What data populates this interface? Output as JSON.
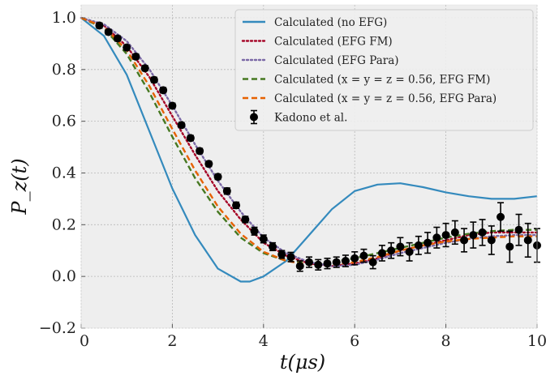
{
  "chart_data": {
    "type": "line",
    "xlabel": "t(μs)",
    "ylabel": "P_z(t)",
    "xlim": [
      0,
      10
    ],
    "ylim": [
      -0.2,
      1.05
    ],
    "x_ticks": [
      0,
      2,
      4,
      6,
      8,
      10
    ],
    "y_ticks": [
      -0.2,
      0.0,
      0.2,
      0.4,
      0.6,
      0.8,
      1.0
    ],
    "x_tick_labels": [
      "0",
      "2",
      "4",
      "6",
      "8",
      "10"
    ],
    "y_tick_labels": [
      "−0.2",
      "0.0",
      "0.2",
      "0.4",
      "0.6",
      "0.8",
      "1.0"
    ],
    "grid": true,
    "legend_position": "top-right",
    "background": "#eeeeee",
    "series": [
      {
        "name": "Calculated (no EFG)",
        "style": "solid",
        "color": "#348ABD",
        "x": [
          0,
          0.5,
          1.0,
          1.5,
          2.0,
          2.5,
          3.0,
          3.5,
          3.7,
          4.0,
          4.5,
          5.0,
          5.5,
          6.0,
          6.5,
          7.0,
          7.5,
          8.0,
          8.5,
          9.0,
          9.5,
          10.0
        ],
        "y": [
          1.0,
          0.93,
          0.78,
          0.56,
          0.34,
          0.16,
          0.03,
          -0.02,
          -0.02,
          0.0,
          0.06,
          0.16,
          0.26,
          0.33,
          0.355,
          0.36,
          0.345,
          0.325,
          0.31,
          0.3,
          0.3,
          0.31
        ]
      },
      {
        "name": "Calculated (EFG FM)",
        "style": "dotted",
        "color": "#A60628",
        "x": [
          0,
          0.5,
          1.0,
          1.5,
          2.0,
          2.5,
          3.0,
          3.5,
          4.0,
          4.5,
          5.0,
          5.5,
          6.0,
          6.5,
          7.0,
          7.5,
          8.0,
          8.5,
          9.0,
          9.5,
          10.0
        ],
        "y": [
          1.0,
          0.97,
          0.89,
          0.77,
          0.62,
          0.47,
          0.33,
          0.22,
          0.13,
          0.08,
          0.05,
          0.04,
          0.05,
          0.07,
          0.1,
          0.12,
          0.14,
          0.16,
          0.17,
          0.17,
          0.17
        ]
      },
      {
        "name": "Calculated (EFG Para)",
        "style": "dotted",
        "color": "#7A68A6",
        "x": [
          0,
          0.5,
          1.0,
          1.5,
          2.0,
          2.5,
          3.0,
          3.5,
          4.0,
          4.5,
          5.0,
          5.5,
          6.0,
          6.5,
          7.0,
          7.5,
          8.0,
          8.5,
          9.0,
          9.5,
          10.0
        ],
        "y": [
          1.0,
          0.975,
          0.91,
          0.8,
          0.66,
          0.51,
          0.37,
          0.25,
          0.15,
          0.09,
          0.055,
          0.04,
          0.045,
          0.065,
          0.09,
          0.11,
          0.13,
          0.145,
          0.155,
          0.16,
          0.16
        ]
      },
      {
        "name": "Calculated (x = y = z = 0.56, EFG FM)",
        "style": "dashed",
        "color": "#467821",
        "x": [
          0,
          0.5,
          1.0,
          1.5,
          2.0,
          2.5,
          3.0,
          3.5,
          4.0,
          4.5,
          5.0,
          5.5,
          6.0,
          6.5,
          7.0,
          7.5,
          8.0,
          8.5,
          9.0,
          9.5,
          10.0
        ],
        "y": [
          1.0,
          0.96,
          0.86,
          0.71,
          0.54,
          0.38,
          0.25,
          0.15,
          0.09,
          0.06,
          0.05,
          0.055,
          0.07,
          0.09,
          0.11,
          0.13,
          0.15,
          0.165,
          0.175,
          0.18,
          0.18
        ]
      },
      {
        "name": "Calculated (x = y = z = 0.56, EFG Para)",
        "style": "dashed",
        "color": "#E66100",
        "x": [
          0,
          0.5,
          1.0,
          1.5,
          2.0,
          2.5,
          3.0,
          3.5,
          4.0,
          4.5,
          5.0,
          5.5,
          6.0,
          6.5,
          7.0,
          7.5,
          8.0,
          8.5,
          9.0,
          9.5,
          10.0
        ],
        "y": [
          1.0,
          0.965,
          0.875,
          0.735,
          0.57,
          0.41,
          0.27,
          0.165,
          0.095,
          0.06,
          0.045,
          0.045,
          0.055,
          0.075,
          0.1,
          0.12,
          0.135,
          0.145,
          0.15,
          0.155,
          0.155
        ]
      }
    ],
    "errorbar_series": {
      "name": "Kadono et al.",
      "color": "#000000",
      "x": [
        0.4,
        0.6,
        0.8,
        1.0,
        1.2,
        1.4,
        1.6,
        1.8,
        2.0,
        2.2,
        2.4,
        2.6,
        2.8,
        3.0,
        3.2,
        3.4,
        3.6,
        3.8,
        4.0,
        4.2,
        4.4,
        4.6,
        4.8,
        5.0,
        5.2,
        5.4,
        5.6,
        5.8,
        6.0,
        6.2,
        6.4,
        6.6,
        6.8,
        7.0,
        7.2,
        7.4,
        7.6,
        7.8,
        8.0,
        8.2,
        8.4,
        8.6,
        8.8,
        9.0,
        9.2,
        9.4,
        9.6,
        9.8,
        10.0
      ],
      "y": [
        0.97,
        0.945,
        0.92,
        0.885,
        0.85,
        0.805,
        0.76,
        0.72,
        0.66,
        0.585,
        0.535,
        0.485,
        0.435,
        0.385,
        0.33,
        0.275,
        0.22,
        0.175,
        0.145,
        0.115,
        0.085,
        0.075,
        0.04,
        0.055,
        0.045,
        0.05,
        0.055,
        0.06,
        0.07,
        0.08,
        0.055,
        0.09,
        0.1,
        0.115,
        0.095,
        0.12,
        0.13,
        0.15,
        0.16,
        0.17,
        0.14,
        0.16,
        0.17,
        0.14,
        0.23,
        0.115,
        0.18,
        0.14,
        0.12
      ],
      "yerr": [
        0.01,
        0.01,
        0.01,
        0.01,
        0.01,
        0.01,
        0.01,
        0.01,
        0.01,
        0.01,
        0.01,
        0.01,
        0.01,
        0.01,
        0.012,
        0.012,
        0.012,
        0.015,
        0.015,
        0.015,
        0.015,
        0.018,
        0.02,
        0.02,
        0.02,
        0.02,
        0.02,
        0.022,
        0.025,
        0.025,
        0.025,
        0.03,
        0.03,
        0.035,
        0.035,
        0.035,
        0.04,
        0.04,
        0.045,
        0.045,
        0.045,
        0.05,
        0.05,
        0.055,
        0.055,
        0.06,
        0.06,
        0.065,
        0.065
      ]
    }
  },
  "legend": {
    "entries": [
      "Calculated (no EFG)",
      "Calculated (EFG FM)",
      "Calculated (EFG Para)",
      "Calculated (x = y = z = 0.56, EFG FM)",
      "Calculated (x = y = z = 0.56, EFG Para)",
      "Kadono et al."
    ]
  }
}
